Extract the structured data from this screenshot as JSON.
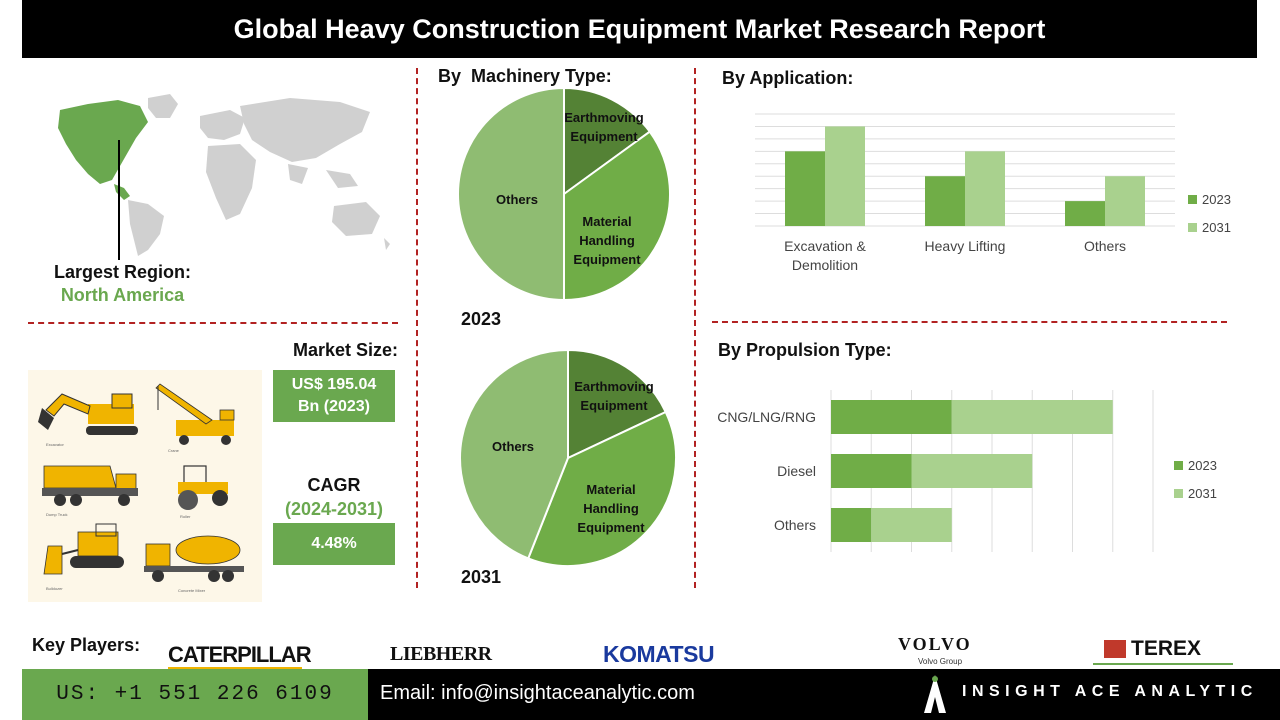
{
  "title": "Global Heavy Construction Equipment Market Research Report",
  "region": {
    "label": "Largest Region:",
    "value": "North America"
  },
  "market_size": {
    "label": "Market Size:",
    "value_line1": "US$ 195.04",
    "value_line2": "Bn (2023)"
  },
  "cagr": {
    "label": "CAGR",
    "period": "(2024-2031)",
    "value": "4.48%"
  },
  "equipment_labels": [
    "Excavator",
    "Crane",
    "Dump Truck",
    "Roller",
    "Bulldozer",
    "Concrete Mixer"
  ],
  "machinery": {
    "title": "By  Machinery Type:"
  },
  "application": {
    "title": "By Application:"
  },
  "propulsion": {
    "title": "By Propulsion Type:"
  },
  "key_players": {
    "label": "Key Players:",
    "logos": [
      "CATERPILLAR",
      "LIEBHERR",
      "KOMATSU",
      "VOLVO",
      "Volvo Group",
      "TEREX"
    ]
  },
  "footer": {
    "phone": "US: +1 551 226 6109",
    "email": "Email: info@insightaceanalytic.com",
    "brand": "INSIGHT ACE ANALYTIC"
  },
  "colors": {
    "dark_green": "#548235",
    "mid_green": "#70ad47",
    "light_green": "#a9d18e",
    "pie_light": "#8fbc72",
    "accent_red": "#b22222",
    "map_highlight": "#6aa84f",
    "map_gray": "#d0d0d0"
  },
  "chart_data": [
    {
      "type": "pie",
      "title": "2023",
      "labels": [
        "Earthmoving Equipment",
        "Material Handling Equipment",
        "Others"
      ],
      "values": [
        15,
        35,
        50
      ]
    },
    {
      "type": "pie",
      "title": "2031",
      "labels": [
        "Earthmoving Equipment",
        "Material Handling Equipment",
        "Others"
      ],
      "values": [
        18,
        38,
        44
      ]
    },
    {
      "type": "bar",
      "title": "By Application:",
      "categories": [
        "Excavation & Demolition",
        "Heavy Lifting",
        "Others"
      ],
      "series": [
        {
          "name": "2023",
          "values": [
            3,
            2,
            1
          ]
        },
        {
          "name": "2031",
          "values": [
            4,
            3,
            2
          ]
        }
      ],
      "ylim": [
        0,
        4.5
      ],
      "grid": true,
      "legend": "right"
    },
    {
      "type": "bar",
      "orientation": "horizontal",
      "stacked": true,
      "title": "By Propulsion Type:",
      "categories": [
        "CNG/LNG/RNG",
        "Diesel",
        "Others"
      ],
      "series": [
        {
          "name": "2023",
          "values": [
            3,
            2,
            1
          ]
        },
        {
          "name": "2031",
          "values": [
            4,
            3,
            2
          ]
        }
      ],
      "xlim": [
        0,
        8
      ],
      "grid": true,
      "legend": "right"
    }
  ]
}
